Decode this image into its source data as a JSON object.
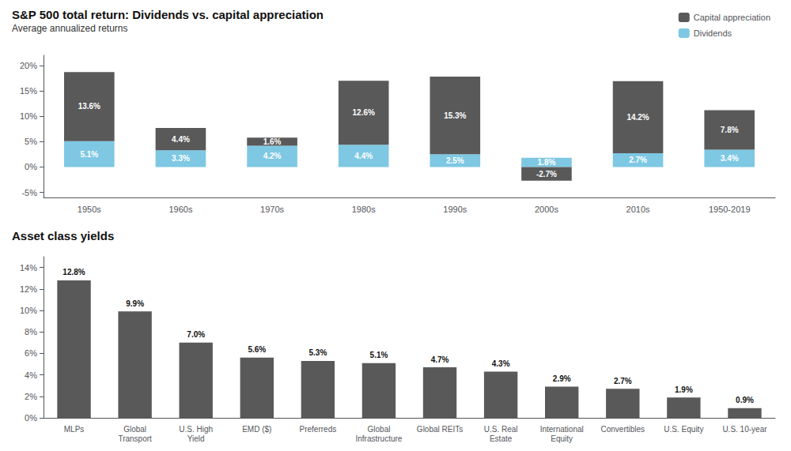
{
  "chart_data": [
    {
      "type": "bar",
      "title": "S&P 500 total return: Dividends vs. capital appreciation",
      "subtitle": "Average annualized returns",
      "categories": [
        "1950s",
        "1960s",
        "1970s",
        "1980s",
        "1990s",
        "2000s",
        "2010s",
        "1950-2019"
      ],
      "series": [
        {
          "name": "Capital appreciation",
          "color": "#595959",
          "values": [
            13.6,
            4.4,
            1.6,
            12.6,
            15.3,
            -2.7,
            14.2,
            7.8
          ],
          "value_labels": [
            "13.6%",
            "4.4%",
            "1.6%",
            "12.6%",
            "15.3%",
            "-2.7%",
            "14.2%",
            "7.8%"
          ]
        },
        {
          "name": "Dividends",
          "color": "#7ec8e3",
          "values": [
            5.1,
            3.3,
            4.2,
            4.4,
            2.5,
            1.8,
            2.7,
            3.4
          ],
          "value_labels": [
            "5.1%",
            "3.3%",
            "4.2%",
            "4.4%",
            "2.5%",
            "1.8%",
            "2.7%",
            "3.4%"
          ]
        }
      ],
      "stacked": true,
      "data_labels": true,
      "legend": "upper right",
      "grid": false,
      "ylim": [
        -6,
        22
      ],
      "yticks": [
        {
          "value": -5,
          "label": "-5%"
        },
        {
          "value": 0,
          "label": "0%"
        },
        {
          "value": 5,
          "label": "5%"
        },
        {
          "value": 10,
          "label": "10%"
        },
        {
          "value": 15,
          "label": "15%"
        },
        {
          "value": 20,
          "label": "20%"
        }
      ]
    },
    {
      "type": "bar",
      "title": "Asset class yields",
      "categories": [
        "MLPs",
        "Global\nTransport",
        "U.S. High\nYield",
        "EMD ($)",
        "Preferreds",
        "Global\nInfrastructure",
        "Global REITs",
        "U.S. Real\nEstate",
        "International\nEquity",
        "Convertibles",
        "U.S. Equity",
        "U.S. 10-year"
      ],
      "values": [
        12.8,
        9.9,
        7.0,
        5.6,
        5.3,
        5.1,
        4.7,
        4.3,
        2.9,
        2.7,
        1.9,
        0.9
      ],
      "value_labels": [
        "12.8%",
        "9.9%",
        "7.0%",
        "5.6%",
        "5.3%",
        "5.1%",
        "4.7%",
        "4.3%",
        "2.9%",
        "2.7%",
        "1.9%",
        "0.9%"
      ],
      "color": "#595959",
      "data_labels": true,
      "grid": false,
      "ylim": [
        0,
        15
      ],
      "yticks": [
        {
          "value": 0,
          "label": "0%"
        },
        {
          "value": 2,
          "label": "2%"
        },
        {
          "value": 4,
          "label": "4%"
        },
        {
          "value": 6,
          "label": "6%"
        },
        {
          "value": 8,
          "label": "8%"
        },
        {
          "value": 10,
          "label": "10%"
        },
        {
          "value": 12,
          "label": "12%"
        },
        {
          "value": 14,
          "label": "14%"
        }
      ]
    }
  ]
}
